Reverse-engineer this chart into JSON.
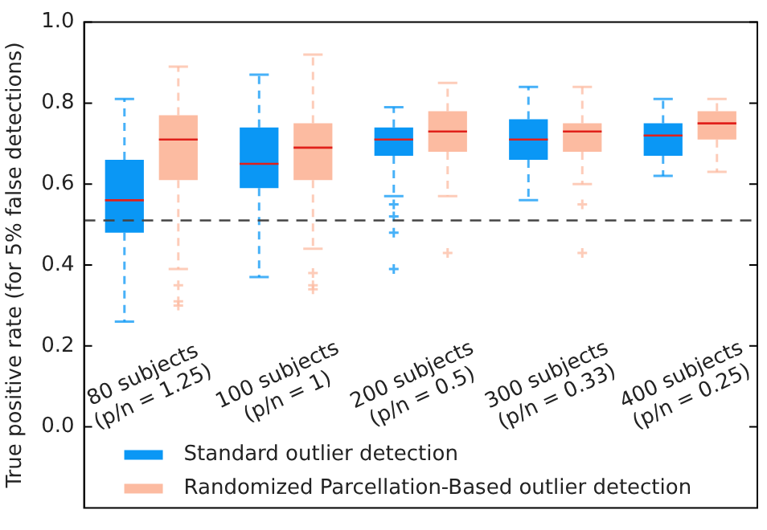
{
  "chart_data": {
    "type": "box",
    "ylabel": "True positive rate (for 5% false detections)",
    "categories": [
      "80 subjects\n(p/n = 1.25)",
      "100 subjects\n(p/n = 1)",
      "200 subjects\n(p/n = 0.5)",
      "300 subjects\n(p/n = 0.33)",
      "400 subjects\n(p/n = 0.25)"
    ],
    "ylim": [
      -0.2,
      1.0
    ],
    "yticks": [
      {
        "value": 0,
        "label": "0.0"
      },
      0.2,
      0.4,
      0.6,
      0.8,
      {
        "value": 1,
        "label": "1.0"
      }
    ],
    "series": [
      {
        "name": "Standard outlier detection",
        "color": "#0a97f5",
        "boxes": [
          {
            "low": 0.26,
            "q1": 0.48,
            "median": 0.56,
            "q3": 0.66,
            "high": 0.81
          },
          {
            "low": 0.37,
            "q1": 0.59,
            "median": 0.65,
            "q3": 0.74,
            "high": 0.87
          },
          {
            "low": 0.57,
            "q1": 0.67,
            "median": 0.71,
            "q3": 0.74,
            "high": 0.79,
            "outliers": [
              0.55,
              0.52,
              0.48,
              0.39
            ]
          },
          {
            "low": 0.56,
            "q1": 0.66,
            "median": 0.71,
            "q3": 0.76,
            "high": 0.84
          },
          {
            "low": 0.62,
            "q1": 0.67,
            "median": 0.72,
            "q3": 0.75,
            "high": 0.81
          }
        ]
      },
      {
        "name": "Randomized Parcellation-Based outlier detection",
        "color": "#fcbba1",
        "boxes": [
          {
            "low": 0.39,
            "q1": 0.61,
            "median": 0.71,
            "q3": 0.77,
            "high": 0.89,
            "outliers": [
              0.35,
              0.31,
              0.3
            ]
          },
          {
            "low": 0.44,
            "q1": 0.61,
            "median": 0.69,
            "q3": 0.75,
            "high": 0.92,
            "outliers": [
              0.38,
              0.35,
              0.34
            ]
          },
          {
            "low": 0.57,
            "q1": 0.68,
            "median": 0.73,
            "q3": 0.78,
            "high": 0.85,
            "outliers": [
              0.43
            ]
          },
          {
            "low": 0.6,
            "q1": 0.68,
            "median": 0.73,
            "q3": 0.75,
            "high": 0.84,
            "outliers": [
              0.55,
              0.43
            ]
          },
          {
            "low": 0.63,
            "q1": 0.71,
            "median": 0.75,
            "q3": 0.78,
            "high": 0.81
          }
        ]
      }
    ],
    "ref_lines": [
      {
        "axis": "y",
        "value": 0.51,
        "color": "#444444",
        "line_style": "dashed"
      }
    ],
    "legend": "bottom left",
    "grid": false
  }
}
